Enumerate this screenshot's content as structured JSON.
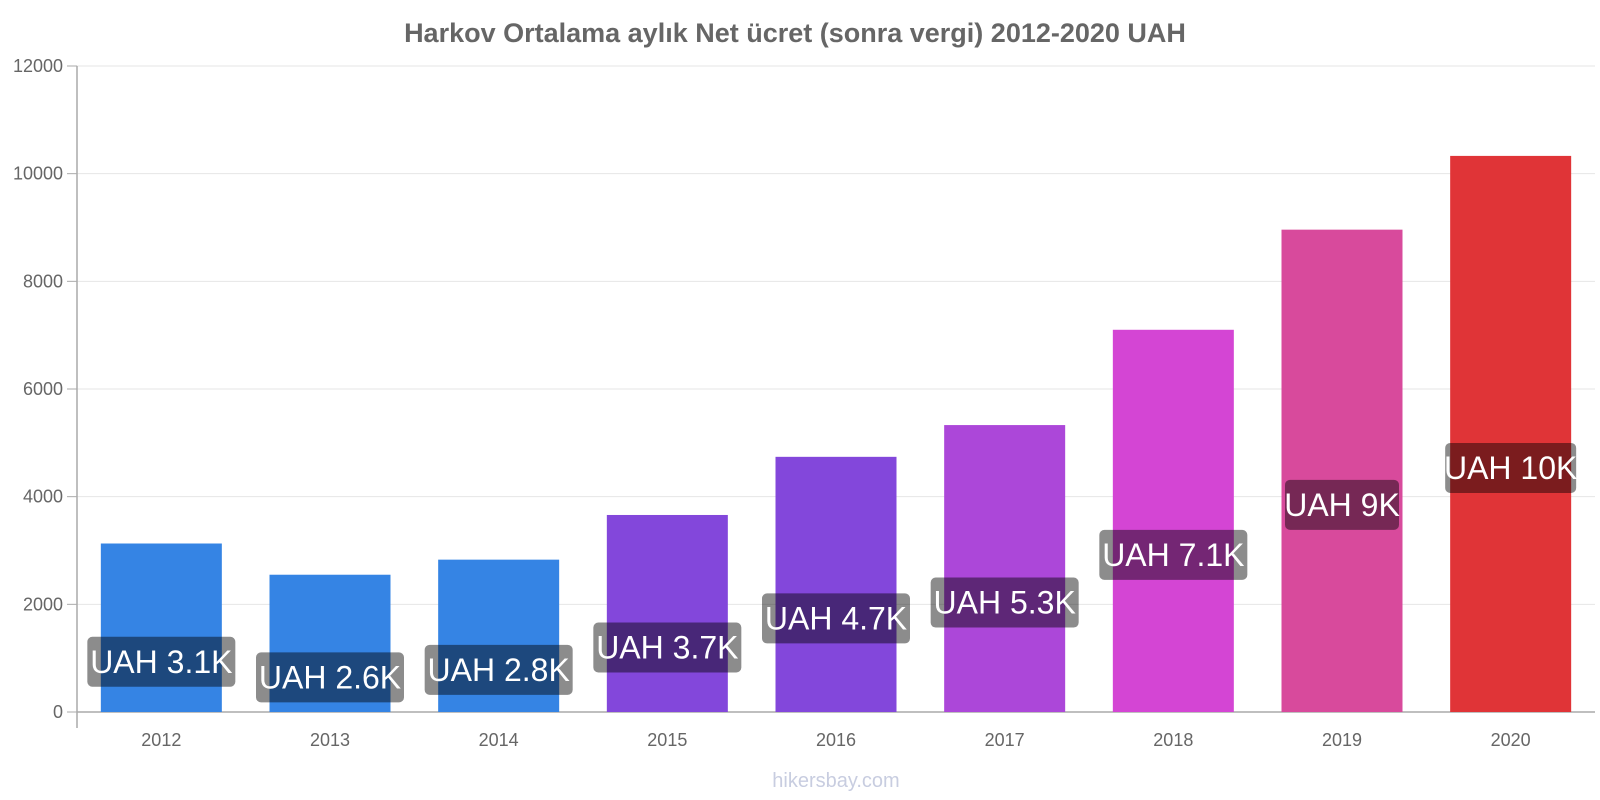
{
  "chart_data": {
    "type": "bar",
    "title": "Harkov Ortalama aylık Net ücret (sonra vergi) 2012-2020 UAH",
    "xlabel": "",
    "ylabel": "",
    "categories": [
      "2012",
      "2013",
      "2014",
      "2015",
      "2016",
      "2017",
      "2018",
      "2019",
      "2020"
    ],
    "values": [
      3130,
      2550,
      2830,
      3660,
      4740,
      5330,
      7100,
      8960,
      10330
    ],
    "data_labels": [
      "UAH 3.1K",
      "UAH 2.6K",
      "UAH 2.8K",
      "UAH 3.7K",
      "UAH 4.7K",
      "UAH 5.3K",
      "UAH 7.1K",
      "UAH 9K",
      "UAH 10K"
    ],
    "colors": [
      "#3584e4",
      "#3584e4",
      "#3584e4",
      "#8347db",
      "#8347db",
      "#ac47d9",
      "#d445d4",
      "#d84a9c",
      "#e03437"
    ],
    "label_colors": [
      "#1f4b7d",
      "#1f4b7d",
      "#1f4b7d",
      "#4a2880",
      "#4a2880",
      "#632a80",
      "#7a287a",
      "#7a2a58",
      "#7a1e1e"
    ],
    "ylim": [
      0,
      12000
    ],
    "yticks": [
      0,
      2000,
      4000,
      6000,
      8000,
      10000,
      12000
    ],
    "grid": true,
    "legend": "none"
  },
  "footer": {
    "watermark": "hikersbay.com"
  }
}
